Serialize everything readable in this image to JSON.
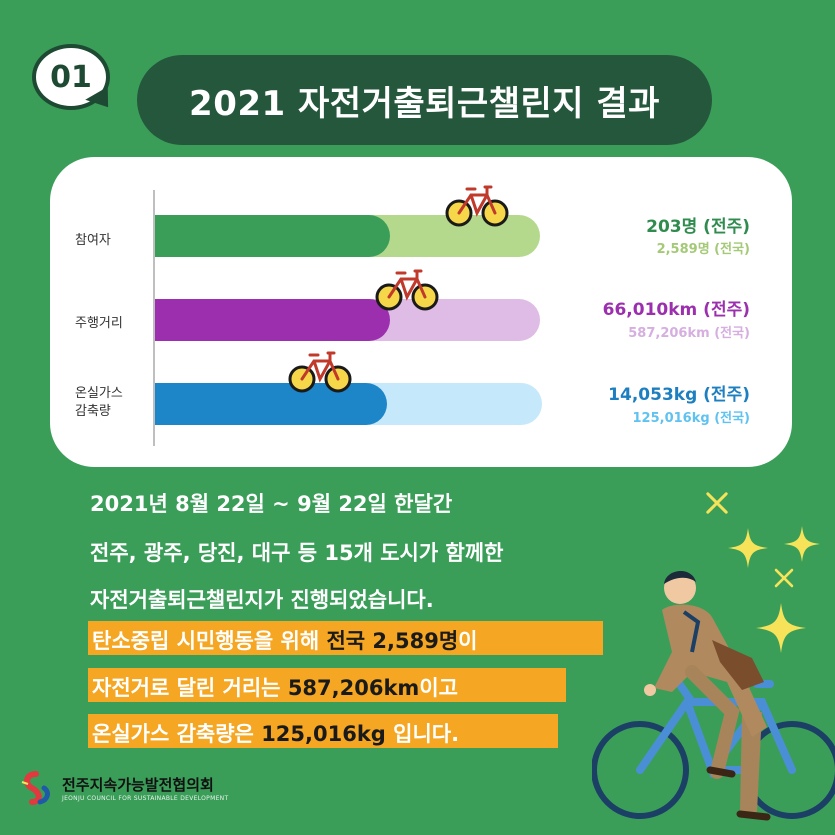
{
  "badge": {
    "number": "01"
  },
  "title": "2021 자전거출퇴근챌린지 결과",
  "chart": {
    "rows": [
      {
        "label_lines": [
          "참여자"
        ],
        "main_value": "203명 (전주)",
        "sub_value": "2,589명 (전국)",
        "fill_fraction": 0.61,
        "colors": {
          "fg": "#3a9e59",
          "bg": "#b5d98c",
          "main": "#2f8c4e",
          "sub": "#a4c977"
        }
      },
      {
        "label_lines": [
          "주행거리"
        ],
        "main_value": "66,010km (전주)",
        "sub_value": "587,206km (전국)",
        "fill_fraction": 0.61,
        "colors": {
          "fg": "#9b2fae",
          "bg": "#dfbce6",
          "main": "#9b2fae",
          "sub": "#d6aee0"
        }
      },
      {
        "label_lines": [
          "온실가스",
          "감축량"
        ],
        "main_value": "14,053kg (전주)",
        "sub_value": "125,016kg (전국)",
        "fill_fraction": 0.6,
        "colors": {
          "fg": "#1d86c8",
          "bg": "#c6e8fb",
          "main": "#1d7fc0",
          "sub": "#5fc2f0"
        }
      }
    ]
  },
  "text": {
    "line1": "2021년 8월 22일 ~ 9월 22일 한달간",
    "line2": "전주, 광주, 당진, 대구 등 15개 도시가 함께한",
    "line3": "자전거출퇴근챌린지가 진행되었습니다."
  },
  "highlights": [
    {
      "pre": "탄소중립 시민행동을 위해 ",
      "strong": "전국 2,589명",
      "post": "이"
    },
    {
      "pre": "자전거로 달린 거리는 ",
      "strong": "587,206km",
      "post": "이고"
    },
    {
      "pre": "온실가스 감축량은 ",
      "strong": "125,016kg",
      "post": " 입니다."
    }
  ],
  "logo": {
    "name": "전주지속가능발전협의회",
    "sub": "JEONJU COUNCIL FOR SUSTAINABLE DEVELOPMENT"
  },
  "colors": {
    "background": "#3a9e59",
    "title_pill": "#25573c",
    "highlight": "#f5a623",
    "sparkle": "#f6e35a"
  }
}
